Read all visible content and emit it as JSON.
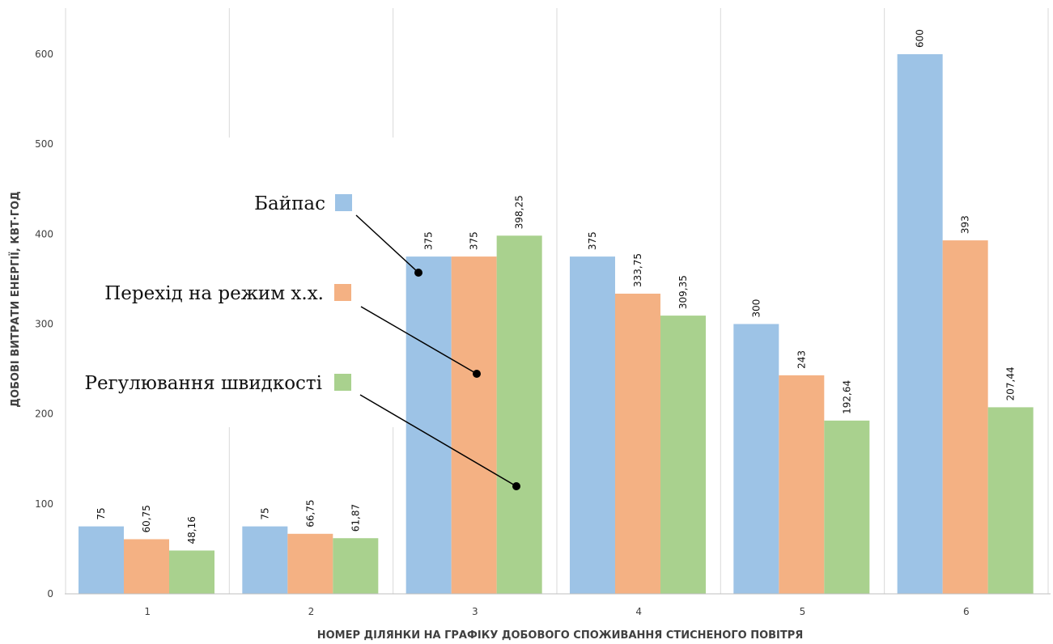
{
  "chart_data": {
    "type": "bar",
    "categories": [
      "1",
      "2",
      "3",
      "4",
      "5",
      "6"
    ],
    "series": [
      {
        "name": "Байпас",
        "color": "#9DC3E6",
        "values": [
          75,
          75,
          375,
          375,
          300,
          600
        ],
        "labels": [
          "75",
          "75",
          "375",
          "375",
          "300",
          "600"
        ]
      },
      {
        "name": "Перехід на режим х.х.",
        "color": "#F4B183",
        "values": [
          60.75,
          66.75,
          375,
          333.75,
          243,
          393
        ],
        "labels": [
          "60,75",
          "66,75",
          "375",
          "333,75",
          "243",
          "393"
        ]
      },
      {
        "name": "Регулювання швидкості",
        "color": "#A9D18E",
        "values": [
          48.16,
          61.87,
          398.25,
          309.35,
          192.64,
          207.44
        ],
        "labels": [
          "48,16",
          "61,87",
          "398,25",
          "309,35",
          "192,64",
          "207,44"
        ]
      }
    ],
    "xlabel": "НОМЕР ДІЛЯНКИ НА ГРАФІКУ ДОБОВОГО СПОЖИВАННЯ СТИСНЕНОГО ПОВІТРЯ",
    "ylabel": "ДОБОВІ ВИТРАТИ ЕНЕРГІЇ, КВТ·ГОД",
    "ylim": [
      0,
      650
    ],
    "yticks": [
      0,
      100,
      200,
      300,
      400,
      500,
      600
    ],
    "grid": "vertical category separators",
    "legend_position": "inside-left, with leader lines to bars of group 3"
  }
}
